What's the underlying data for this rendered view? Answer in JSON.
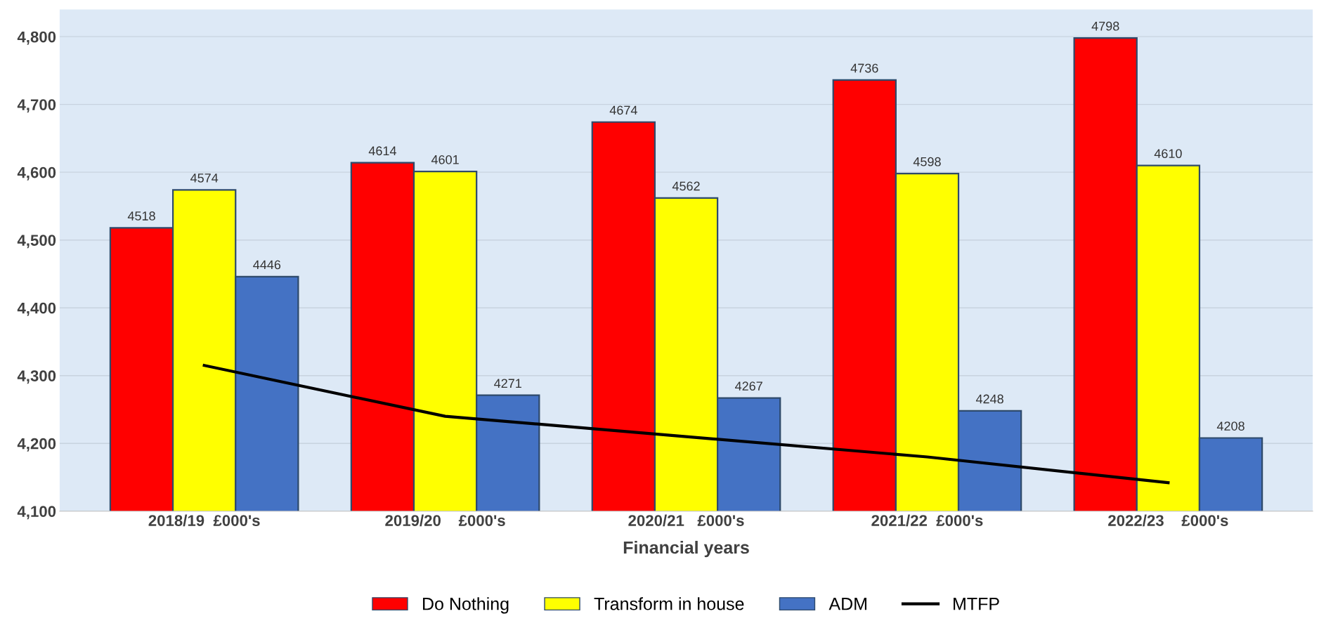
{
  "chart_data": {
    "type": "bar",
    "xlabel": "Financial years",
    "categories": [
      "2018/19  £000's",
      "2019/20    £000's",
      "2020/21   £000's",
      "2021/22  £000's",
      "2022/23    £000's"
    ],
    "series": [
      {
        "name": "Do Nothing",
        "color": "#ff0000",
        "values": [
          4518,
          4614,
          4674,
          4736,
          4798
        ],
        "value_labels": [
          "4518",
          "4614",
          "4674",
          "4736",
          "4798"
        ]
      },
      {
        "name": "Transform in house",
        "color": "#ffff00",
        "values": [
          4574,
          4601,
          4562,
          4598,
          4610
        ],
        "value_labels": [
          "4574",
          "4601",
          "4562",
          "4598",
          "4610"
        ]
      },
      {
        "name": "ADM",
        "color": "#4472c4",
        "values": [
          4446,
          4271,
          4267,
          4248,
          4208
        ],
        "value_labels": [
          "4446",
          "4271",
          "4267",
          "4248",
          "4208"
        ]
      },
      {
        "name": "MTFP",
        "type": "line",
        "color": "#000000",
        "values": [
          4315,
          4240,
          4210,
          4180,
          4142
        ]
      }
    ],
    "ylim": [
      4100,
      4840
    ],
    "yticks": [
      {
        "value": 4100,
        "label": "4,100"
      },
      {
        "value": 4200,
        "label": "4,200"
      },
      {
        "value": 4300,
        "label": "4,300"
      },
      {
        "value": 4400,
        "label": "4,400"
      },
      {
        "value": 4500,
        "label": "4,500"
      },
      {
        "value": 4600,
        "label": "4,600"
      },
      {
        "value": 4700,
        "label": "4,700"
      },
      {
        "value": 4800,
        "label": "4,800"
      }
    ],
    "grid": "y",
    "legend": "bottom",
    "marker": "none",
    "line_style": "solid"
  }
}
